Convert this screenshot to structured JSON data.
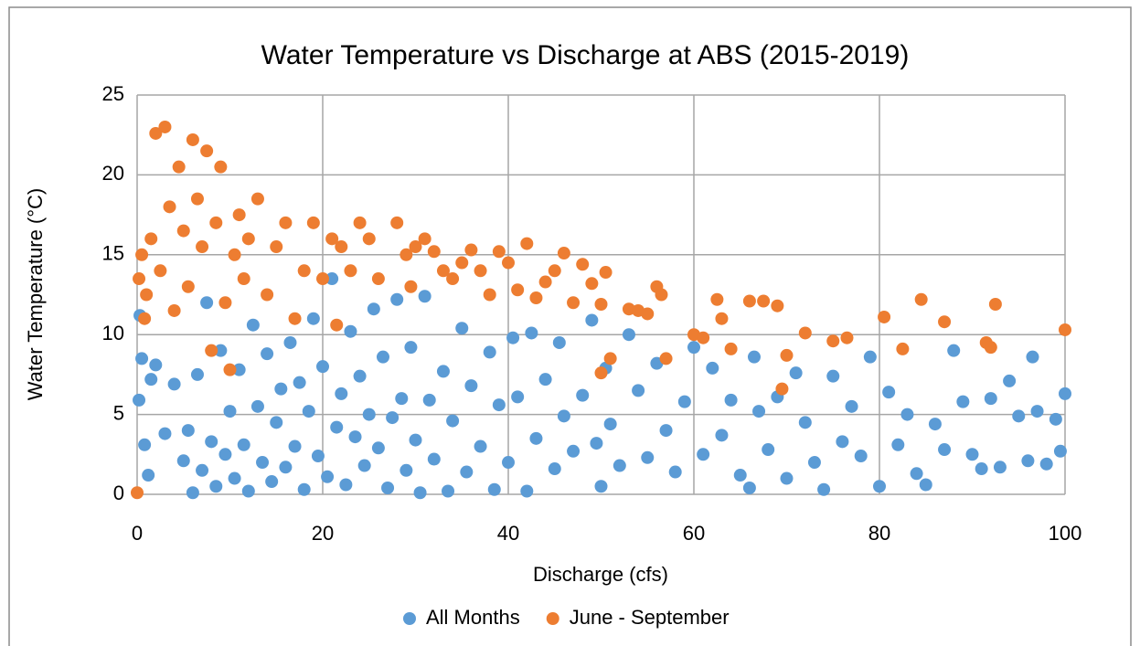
{
  "chart_data": {
    "type": "scatter",
    "title": "Water Temperature vs Discharge at ABS (2015-2019)",
    "x_label": "Discharge (cfs)",
    "y_label": "Water Temperature (°C)",
    "xlim": [
      0,
      100
    ],
    "xticks": [
      0,
      20,
      40,
      60,
      80,
      100
    ],
    "ylim": [
      0,
      25
    ],
    "yticks": [
      0,
      5,
      10,
      15,
      20,
      25
    ],
    "grid": true,
    "legend": "bottom",
    "series": [
      {
        "name": "All Months",
        "color": "#5b9bd5",
        "x": [
          0.2,
          0.5,
          0.8,
          1.2,
          0.3,
          1.5,
          2,
          3,
          4,
          5,
          5.5,
          6,
          6.5,
          7,
          7.5,
          8,
          8.5,
          9,
          9.5,
          10,
          10.5,
          11,
          11.5,
          12,
          12.5,
          13,
          13.5,
          14,
          14.5,
          15,
          15.5,
          16,
          16.5,
          17,
          17.5,
          18,
          18.5,
          19,
          19.5,
          20,
          20.5,
          21,
          21.5,
          22,
          22.5,
          23,
          23.5,
          24,
          24.5,
          25,
          25.5,
          26,
          26.5,
          27,
          27.5,
          28,
          28.5,
          29,
          29.5,
          30,
          30.5,
          31,
          31.5,
          32,
          33,
          33.5,
          34,
          35,
          35.5,
          36,
          37,
          38,
          38.5,
          39,
          40,
          40.5,
          41,
          42,
          42.5,
          43,
          44,
          45,
          45.5,
          46,
          47,
          48,
          49,
          49.5,
          50,
          50.5,
          51,
          52,
          53,
          54,
          55,
          56,
          57,
          58,
          59,
          60,
          61,
          62,
          63,
          64,
          65,
          66,
          66.5,
          67,
          68,
          69,
          70,
          71,
          72,
          73,
          74,
          75,
          76,
          77,
          78,
          79,
          80,
          81,
          82,
          83,
          84,
          85,
          86,
          87,
          88,
          89,
          90,
          91,
          92,
          93,
          94,
          95,
          96,
          96.5,
          97,
          98,
          99,
          99.5,
          100
        ],
        "values": [
          5.9,
          8.5,
          3.1,
          1.2,
          11.2,
          7.2,
          8.1,
          3.8,
          6.9,
          2.1,
          4.0,
          0.1,
          7.5,
          1.5,
          12.0,
          3.3,
          0.5,
          9.0,
          2.5,
          5.2,
          1.0,
          7.8,
          3.1,
          0.2,
          10.6,
          5.5,
          2.0,
          8.8,
          0.8,
          4.5,
          6.6,
          1.7,
          9.5,
          3.0,
          7.0,
          0.3,
          5.2,
          11.0,
          2.4,
          8.0,
          1.1,
          13.5,
          4.2,
          6.3,
          0.6,
          10.2,
          3.6,
          7.4,
          1.8,
          5.0,
          11.6,
          2.9,
          8.6,
          0.4,
          4.8,
          12.2,
          6.0,
          1.5,
          9.2,
          3.4,
          0.1,
          12.4,
          5.9,
          2.2,
          7.7,
          0.2,
          4.6,
          10.4,
          1.4,
          6.8,
          3.0,
          8.9,
          0.3,
          5.6,
          2.0,
          9.8,
          6.1,
          0.2,
          10.1,
          3.5,
          7.2,
          1.6,
          9.5,
          4.9,
          2.7,
          6.2,
          10.9,
          3.2,
          0.5,
          7.9,
          4.4,
          1.8,
          10.0,
          6.5,
          2.3,
          8.2,
          4.0,
          1.4,
          5.8,
          9.2,
          2.5,
          7.9,
          3.7,
          5.9,
          1.2,
          0.4,
          8.6,
          5.2,
          2.8,
          6.1,
          1.0,
          7.6,
          4.5,
          2.0,
          0.3,
          7.4,
          3.3,
          5.5,
          2.4,
          8.6,
          0.5,
          6.4,
          3.1,
          5.0,
          1.3,
          0.6,
          4.4,
          2.8,
          9.0,
          5.8,
          2.5,
          1.6,
          6.0,
          1.7,
          7.1,
          4.9,
          2.1,
          8.6,
          5.2,
          1.9,
          4.7,
          2.7,
          6.3
        ]
      },
      {
        "name": "June - September",
        "color": "#ed7d31",
        "x": [
          0,
          0.2,
          0.5,
          0.8,
          1,
          1.5,
          2,
          2.5,
          3,
          3.5,
          4,
          4.5,
          5,
          5.5,
          6,
          6.5,
          7,
          7.5,
          8,
          8.5,
          9,
          9.5,
          10,
          10.5,
          11,
          11.5,
          12,
          13,
          14,
          15,
          16,
          17,
          18,
          19,
          20,
          21,
          21.5,
          22,
          23,
          24,
          25,
          26,
          28,
          29,
          29.5,
          30,
          31,
          32,
          33,
          34,
          35,
          36,
          37,
          38,
          39,
          40,
          41,
          42,
          43,
          44,
          45,
          46,
          47,
          48,
          49,
          50,
          50.5,
          50,
          51,
          53,
          54,
          55,
          56,
          56.5,
          57,
          60,
          61,
          62.5,
          63,
          64,
          66,
          67.5,
          69,
          69.5,
          70,
          72,
          75,
          76.5,
          80.5,
          82.5,
          84.5,
          87,
          91.5,
          92,
          92.5,
          100
        ],
        "values": [
          0.1,
          13.5,
          15.0,
          11.0,
          12.5,
          16.0,
          22.6,
          14.0,
          23.0,
          18.0,
          11.5,
          20.5,
          16.5,
          13.0,
          22.2,
          18.5,
          15.5,
          21.5,
          9.0,
          17.0,
          20.5,
          12.0,
          7.8,
          15.0,
          17.5,
          13.5,
          16.0,
          18.5,
          12.5,
          15.5,
          17.0,
          11.0,
          14.0,
          17.0,
          13.5,
          16.0,
          10.6,
          15.5,
          14.0,
          17.0,
          16.0,
          13.5,
          17.0,
          15.0,
          13.0,
          15.5,
          16.0,
          15.2,
          14.0,
          13.5,
          14.5,
          15.3,
          14.0,
          12.5,
          15.2,
          14.5,
          12.8,
          15.7,
          12.3,
          13.3,
          14.0,
          15.1,
          12.0,
          14.4,
          13.2,
          11.9,
          13.9,
          7.6,
          8.5,
          11.6,
          11.5,
          11.3,
          13.0,
          12.5,
          8.5,
          10.0,
          9.8,
          12.2,
          11.0,
          9.1,
          12.1,
          12.1,
          11.8,
          6.6,
          8.7,
          10.1,
          9.6,
          9.8,
          11.1,
          9.1,
          12.2,
          10.8,
          9.5,
          9.2,
          11.9,
          10.3
        ]
      }
    ]
  }
}
